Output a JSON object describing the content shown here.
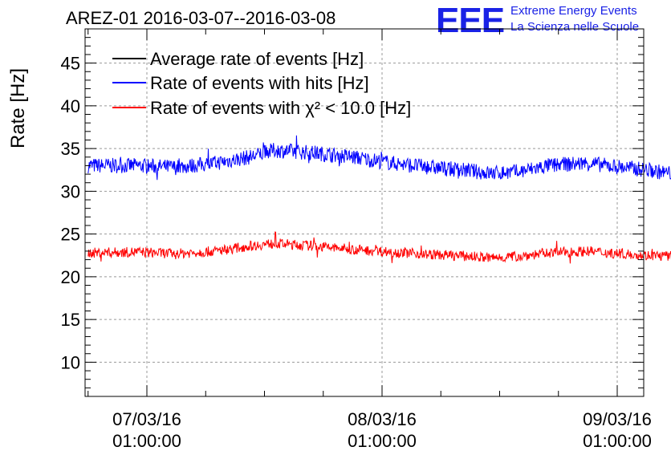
{
  "chart_data": {
    "type": "line",
    "title": "AREZ-01 2016-03-07--2016-03-08",
    "ylabel": "Rate [Hz]",
    "ylim": [
      6,
      49
    ],
    "yticks": [
      10,
      15,
      20,
      25,
      30,
      35,
      40,
      45
    ],
    "xticks": [
      {
        "date": "07/03/16",
        "time": "01:00:00"
      },
      {
        "date": "08/03/16",
        "time": "01:00:00"
      },
      {
        "date": "09/03/16",
        "time": "01:00:00"
      }
    ],
    "grid": true,
    "legend_position": "top-left",
    "series": [
      {
        "name": "Average rate of events [Hz]",
        "color": "#000000",
        "x": [],
        "y": []
      },
      {
        "name": "Rate of events with hits [Hz]",
        "color": "#0000ff",
        "x": [
          "2016-03-06 19:00",
          "2016-03-07 00:00",
          "2016-03-07 04:00",
          "2016-03-07 08:00",
          "2016-03-07 11:30",
          "2016-03-07 14:00",
          "2016-03-07 18:00",
          "2016-03-07 22:00",
          "2016-03-08 02:00",
          "2016-03-08 06:00",
          "2016-03-08 10:00",
          "2016-03-08 12:00",
          "2016-03-08 15:00",
          "2016-03-08 18:00",
          "2016-03-08 22:00",
          "2016-03-09 00:00",
          "2016-03-09 04:00",
          "2016-03-09 07:00"
        ],
        "y": [
          33.0,
          33.0,
          32.8,
          33.3,
          34.0,
          34.8,
          34.5,
          34.0,
          33.3,
          32.8,
          32.4,
          32.1,
          32.3,
          33.0,
          33.3,
          33.0,
          32.5,
          32.0
        ]
      },
      {
        "name": "Rate of events with χ² < 10.0 [Hz]",
        "color": "#ff0000",
        "x": [
          "2016-03-06 19:00",
          "2016-03-07 00:00",
          "2016-03-07 04:00",
          "2016-03-07 08:00",
          "2016-03-07 11:30",
          "2016-03-07 14:00",
          "2016-03-07 18:00",
          "2016-03-07 22:00",
          "2016-03-08 02:00",
          "2016-03-08 06:00",
          "2016-03-08 10:00",
          "2016-03-08 12:00",
          "2016-03-08 15:00",
          "2016-03-08 18:00",
          "2016-03-08 22:00",
          "2016-03-09 00:00",
          "2016-03-09 04:00",
          "2016-03-09 07:00"
        ],
        "y": [
          22.8,
          22.9,
          22.7,
          23.0,
          23.6,
          23.9,
          23.6,
          23.2,
          22.9,
          22.6,
          22.4,
          22.2,
          22.4,
          22.8,
          23.0,
          22.8,
          22.5,
          22.4
        ]
      }
    ]
  },
  "logo": {
    "text": "EEE",
    "line1": "Extreme Energy Events",
    "line2": "La Scienza nelle Scuole",
    "color": "#1a22e6"
  }
}
